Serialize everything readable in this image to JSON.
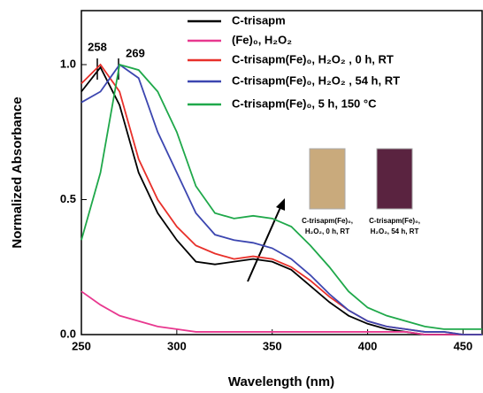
{
  "chart_data": {
    "type": "line",
    "x_label": "Wavelength (nm)",
    "y_label": "Normalized Absorbance",
    "x": [
      250,
      260,
      270,
      280,
      290,
      300,
      310,
      320,
      330,
      340,
      350,
      360,
      370,
      380,
      390,
      400,
      410,
      420,
      430,
      440,
      450,
      460
    ],
    "series": [
      {
        "name": "C-trisapm",
        "color": "#000000",
        "values": [
          0.9,
          0.99,
          0.85,
          0.6,
          0.45,
          0.35,
          0.27,
          0.26,
          0.27,
          0.28,
          0.27,
          0.24,
          0.18,
          0.12,
          0.07,
          0.04,
          0.02,
          0.01,
          0.0,
          0.0,
          0.0,
          0.0
        ]
      },
      {
        "name": "(Fe)₀, H₂O₂",
        "color": "#e8388f",
        "values": [
          0.16,
          0.11,
          0.07,
          0.05,
          0.03,
          0.02,
          0.01,
          0.01,
          0.01,
          0.01,
          0.01,
          0.01,
          0.01,
          0.01,
          0.01,
          0.01,
          0.01,
          0.01,
          0.0,
          0.0,
          0.0,
          0.0
        ]
      },
      {
        "name": "C-trisapm(Fe)₀, H₂O₂ , 0 h, RT",
        "color": "#e8302a",
        "values": [
          0.93,
          1.0,
          0.9,
          0.65,
          0.5,
          0.4,
          0.33,
          0.3,
          0.28,
          0.29,
          0.28,
          0.25,
          0.2,
          0.14,
          0.09,
          0.05,
          0.03,
          0.02,
          0.01,
          0.01,
          0.0,
          0.0
        ]
      },
      {
        "name": "C-trisapm(Fe)₀, H₂O₂ , 54 h, RT",
        "color": "#3c46b0",
        "values": [
          0.86,
          0.9,
          1.0,
          0.95,
          0.75,
          0.6,
          0.45,
          0.37,
          0.35,
          0.34,
          0.32,
          0.28,
          0.22,
          0.15,
          0.09,
          0.05,
          0.03,
          0.02,
          0.01,
          0.01,
          0.0,
          0.0
        ]
      },
      {
        "name": "C-trisapm(Fe)₀, 5 h, 150 °C",
        "color": "#1fa84a",
        "values": [
          0.35,
          0.6,
          1.0,
          0.98,
          0.9,
          0.75,
          0.55,
          0.45,
          0.43,
          0.44,
          0.43,
          0.4,
          0.33,
          0.25,
          0.16,
          0.1,
          0.07,
          0.05,
          0.03,
          0.02,
          0.02,
          0.02
        ]
      }
    ],
    "annotations": [
      "258",
      "269"
    ],
    "inset_captions": [
      [
        "C-trisapm(Fe)₀,",
        "H₂O₂, 0 h, RT"
      ],
      [
        "C-trisapm(Fe)₀,",
        "H₂O₂, 54 h, RT"
      ]
    ],
    "xlim": [
      250,
      460
    ],
    "ylim": [
      0,
      1.2
    ],
    "xticks": [
      250,
      300,
      350,
      400,
      450
    ],
    "yticks": [
      {
        "value": 0,
        "label": "0.0"
      },
      {
        "value": 0.5,
        "label": "0.5"
      },
      {
        "value": 1,
        "label": "1.0"
      }
    ]
  }
}
